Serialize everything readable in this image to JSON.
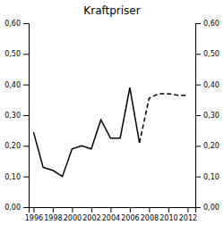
{
  "chart_data": {
    "type": "line",
    "title": "Kraftpriser",
    "x": [
      1996,
      1997,
      1998,
      1999,
      2000,
      2001,
      2002,
      2003,
      2004,
      2005,
      2006,
      2007,
      2008,
      2009,
      2010,
      2011,
      2012
    ],
    "series": [
      {
        "color": "#000000",
        "line_style": "solid",
        "values": [
          0.245,
          0.13,
          0.12,
          0.1,
          0.19,
          0.2,
          0.19,
          0.285,
          0.225,
          0.225,
          0.39,
          0.21,
          null,
          null,
          null,
          null,
          null
        ]
      },
      {
        "color": "#000000",
        "line_style": "dashed",
        "values": [
          null,
          null,
          null,
          null,
          null,
          null,
          null,
          null,
          null,
          null,
          null,
          0.21,
          0.355,
          0.37,
          0.37,
          0.365,
          0.365
        ]
      }
    ],
    "xlim": [
      1995.5,
      2012.8
    ],
    "xticks": [
      1996,
      1998,
      2000,
      2002,
      2004,
      2006,
      2008,
      2010,
      2012
    ],
    "ylim": [
      0.0,
      0.6
    ],
    "yticks": [
      {
        "value": 0.0,
        "label": "0,00"
      },
      {
        "value": 0.1,
        "label": "0,10"
      },
      {
        "value": 0.2,
        "label": "0,20"
      },
      {
        "value": 0.3,
        "label": "0,30"
      },
      {
        "value": 0.4,
        "label": "0,40"
      },
      {
        "value": 0.5,
        "label": "0,50"
      },
      {
        "value": 0.6,
        "label": "0,60"
      }
    ],
    "y2lim": [
      0.0,
      0.6
    ],
    "y2ticks": [
      {
        "value": 0.0,
        "label": "0,00"
      },
      {
        "value": 0.1,
        "label": "0,10"
      },
      {
        "value": 0.2,
        "label": "0,20"
      },
      {
        "value": 0.3,
        "label": "0,30"
      },
      {
        "value": 0.4,
        "label": "0,40"
      },
      {
        "value": 0.5,
        "label": "0,50"
      },
      {
        "value": 0.6,
        "label": "0,60"
      }
    ],
    "grid": false
  }
}
